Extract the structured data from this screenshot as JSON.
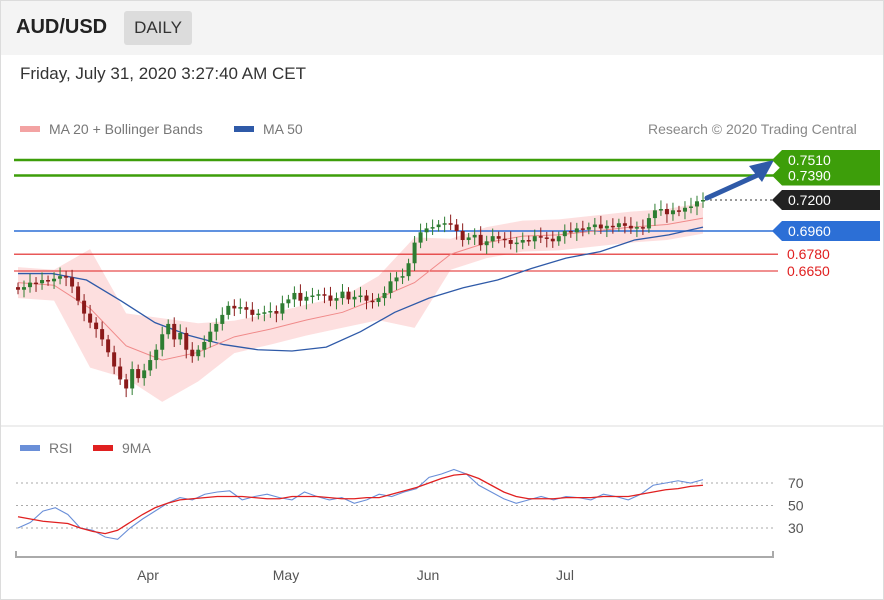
{
  "header": {
    "pair": "AUD/USD",
    "timeframe": "DAILY",
    "timestamp": "Friday, July 31, 2020 3:27:40 AM CET"
  },
  "legend": {
    "bollinger": "MA 20 + Bollinger Bands",
    "ma50": "MA 50",
    "credit": "Research © 2020 Trading Central"
  },
  "rsi_legend": {
    "rsi": "RSI",
    "ma9": "9MA"
  },
  "colors": {
    "green": "#3d9e0a",
    "blue": "#2c6fd6",
    "red": "#e02020",
    "dark": "#222222",
    "bollinger_fill": "#fdd9d9",
    "ma50": "#2f5aa8",
    "candle_up": "#2e7d32",
    "candle_down": "#8b1a1a",
    "rsi": "#6a8fd8",
    "rsi_ma": "#e02020"
  },
  "chart_data": [
    {
      "type": "candlestick",
      "title": "AUD/USD DAILY",
      "ylim": [
        0.55,
        0.76
      ],
      "levels": [
        {
          "label": "0.7510",
          "value": 0.751,
          "kind": "resistance"
        },
        {
          "label": "0.7390",
          "value": 0.739,
          "kind": "resistance"
        },
        {
          "label": "0.7200",
          "value": 0.72,
          "kind": "last"
        },
        {
          "label": "0.6960",
          "value": 0.696,
          "kind": "pivot"
        },
        {
          "label": "0.6780",
          "value": 0.678,
          "kind": "support"
        },
        {
          "label": "0.6650",
          "value": 0.665,
          "kind": "support"
        }
      ],
      "projection": {
        "from": 0.72,
        "to": 0.751
      },
      "series": [
        {
          "name": "AUD/USD",
          "closes": [
            0.6505,
            0.6525,
            0.656,
            0.6555,
            0.658,
            0.657,
            0.659,
            0.661,
            0.66,
            0.653,
            0.642,
            0.632,
            0.625,
            0.62,
            0.612,
            0.602,
            0.591,
            0.581,
            0.574,
            0.589,
            0.582,
            0.588,
            0.596,
            0.604,
            0.616,
            0.624,
            0.612,
            0.617,
            0.604,
            0.599,
            0.604,
            0.61,
            0.618,
            0.624,
            0.631,
            0.638,
            0.636,
            0.637,
            0.635,
            0.631,
            0.632,
            0.633,
            0.634,
            0.632,
            0.64,
            0.643,
            0.648,
            0.642,
            0.645,
            0.646,
            0.647,
            0.646,
            0.642,
            0.644,
            0.649,
            0.643,
            0.645,
            0.646,
            0.642,
            0.641,
            0.644,
            0.648,
            0.657,
            0.66,
            0.661,
            0.671,
            0.687,
            0.695,
            0.698,
            0.699,
            0.701,
            0.702,
            0.701,
            0.696,
            0.689,
            0.691,
            0.693,
            0.685,
            0.688,
            0.692,
            0.69,
            0.689,
            0.686,
            0.687,
            0.689,
            0.688,
            0.692,
            0.691,
            0.69,
            0.688,
            0.692,
            0.696,
            0.695,
            0.698,
            0.697,
            0.699,
            0.701,
            0.698,
            0.7,
            0.699,
            0.702,
            0.7,
            0.698,
            0.699,
            0.698,
            0.706,
            0.712,
            0.713,
            0.709,
            0.712,
            0.711,
            0.714,
            0.715,
            0.719,
            0.72
          ]
        },
        {
          "name": "MA 50",
          "values": [
            0.663,
            0.663,
            0.658,
            0.642,
            0.625,
            0.615,
            0.608,
            0.604,
            0.603,
            0.606,
            0.618,
            0.633,
            0.644,
            0.652,
            0.658,
            0.667,
            0.675,
            0.68,
            0.689,
            0.693,
            0.699
          ]
        },
        {
          "name": "MA 20",
          "values": [
            0.656,
            0.654,
            0.636,
            0.607,
            0.596,
            0.602,
            0.614,
            0.62,
            0.627,
            0.633,
            0.644,
            0.656,
            0.678,
            0.687,
            0.692,
            0.693,
            0.696,
            0.699,
            0.701,
            0.706
          ]
        }
      ],
      "x_labels": [
        "Apr",
        "May",
        "Jun",
        "Jul"
      ],
      "grid": false
    },
    {
      "type": "line",
      "title": "RSI",
      "ylim": [
        0,
        100
      ],
      "y_ticks": [
        "70",
        "50",
        "30"
      ],
      "x_labels": [
        "Apr",
        "May",
        "Jun",
        "Jul"
      ],
      "series": [
        {
          "name": "RSI",
          "values": [
            30,
            35,
            45,
            48,
            42,
            30,
            28,
            22,
            20,
            30,
            38,
            45,
            52,
            57,
            55,
            60,
            62,
            63,
            55,
            58,
            60,
            57,
            55,
            62,
            58,
            55,
            57,
            52,
            55,
            60,
            58,
            62,
            65,
            75,
            78,
            82,
            78,
            68,
            62,
            56,
            52,
            55,
            58,
            55,
            58,
            57,
            55,
            60,
            58,
            55,
            60,
            68,
            70,
            72,
            70,
            73
          ]
        },
        {
          "name": "9MA",
          "values": [
            40,
            38,
            36,
            35,
            34,
            30,
            27,
            25,
            28,
            35,
            42,
            48,
            52,
            55,
            56,
            57,
            58,
            58,
            58,
            57,
            56,
            56,
            58,
            58,
            58,
            57,
            56,
            56,
            57,
            57,
            60,
            63,
            66,
            70,
            74,
            77,
            78,
            74,
            68,
            62,
            58,
            56,
            56,
            56,
            57,
            57,
            57,
            58,
            58,
            58,
            60,
            62,
            64,
            65,
            67,
            68
          ]
        }
      ]
    }
  ]
}
